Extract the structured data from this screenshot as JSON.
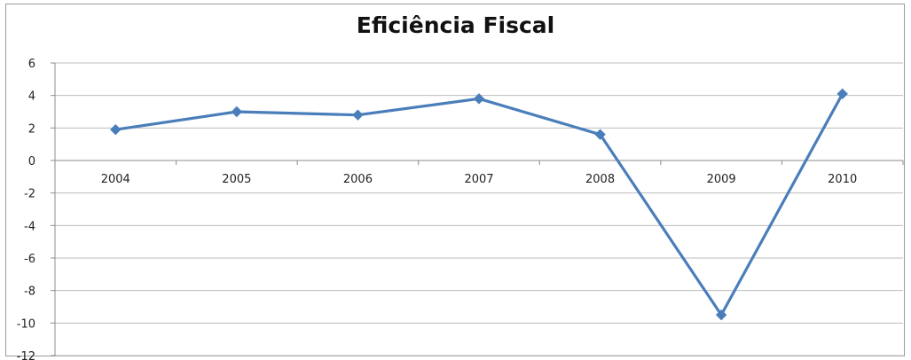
{
  "chart_data": {
    "type": "line",
    "title": "Eficiência Fiscal",
    "xlabel": "",
    "ylabel": "",
    "categories": [
      "2004",
      "2005",
      "2006",
      "2007",
      "2008",
      "2009",
      "2010"
    ],
    "series": [
      {
        "values": [
          1.9,
          3.0,
          2.8,
          3.8,
          1.6,
          -9.5,
          4.1
        ],
        "color": "#4a7ebb"
      }
    ],
    "ylim": [
      -12,
      6
    ],
    "yticks": [
      6,
      4,
      2,
      0,
      -2,
      -4,
      -6,
      -8,
      -10,
      -12
    ],
    "grid": true,
    "legend": "none"
  }
}
